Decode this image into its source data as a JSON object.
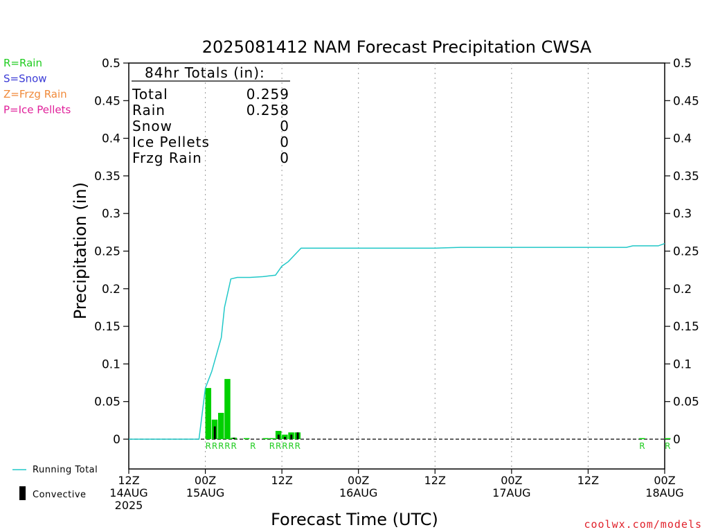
{
  "chart_data": {
    "type": "bar",
    "title": "2025081412 NAM Forecast Precipitation CWSA",
    "xlabel": "Forecast Time (UTC)",
    "ylabel": "Precipitation (in)",
    "ylim": [
      0,
      0.5
    ],
    "xlim_hours": [
      0,
      84
    ],
    "grid": "vertical dotted lines",
    "yticks": [
      "0",
      "0.05",
      "0.1",
      "0.15",
      "0.2",
      "0.25",
      "0.3",
      "0.35",
      "0.4",
      "0.45",
      "0.5"
    ],
    "xticks": [
      {
        "hour": 0,
        "lines": [
          "12Z",
          "14AUG",
          "2025"
        ]
      },
      {
        "hour": 12,
        "lines": [
          "00Z",
          "15AUG"
        ]
      },
      {
        "hour": 24,
        "lines": [
          "12Z"
        ]
      },
      {
        "hour": 36,
        "lines": [
          "00Z",
          "16AUG"
        ]
      },
      {
        "hour": 48,
        "lines": [
          "12Z"
        ]
      },
      {
        "hour": 60,
        "lines": [
          "00Z",
          "17AUG"
        ]
      },
      {
        "hour": 72,
        "lines": [
          "12Z"
        ]
      },
      {
        "hour": 84,
        "lines": [
          "00Z",
          "18AUG"
        ]
      }
    ],
    "precip_type_legend": [
      {
        "label": "R=Rain",
        "color": "#1fcc1f"
      },
      {
        "label": "S=Snow",
        "color": "#3b3bd6"
      },
      {
        "label": "Z=Frzg Rain",
        "color": "#f08a3a"
      },
      {
        "label": "P=Ice Pellets",
        "color": "#e0209a"
      }
    ],
    "totals_box": {
      "header": "84hr Totals (in):",
      "rows": [
        {
          "label": "Total",
          "value": "0.259"
        },
        {
          "label": "Rain",
          "value": "0.258"
        },
        {
          "label": "Snow",
          "value": "0"
        },
        {
          "label": "Ice Pellets",
          "value": "0"
        },
        {
          "label": "Frzg Rain",
          "value": "0"
        }
      ]
    },
    "series": [
      {
        "name": "Running Total",
        "color": "#20c8c8",
        "points": [
          [
            0,
            0
          ],
          [
            11,
            0
          ],
          [
            12,
            0.068
          ],
          [
            13,
            0.09
          ],
          [
            14,
            0.12
          ],
          [
            14.5,
            0.135
          ],
          [
            15,
            0.175
          ],
          [
            16,
            0.213
          ],
          [
            17,
            0.215
          ],
          [
            19,
            0.215
          ],
          [
            21,
            0.216
          ],
          [
            22,
            0.217
          ],
          [
            23,
            0.218
          ],
          [
            24,
            0.23
          ],
          [
            25,
            0.236
          ],
          [
            27,
            0.254
          ],
          [
            30,
            0.254
          ],
          [
            36,
            0.254
          ],
          [
            48,
            0.254
          ],
          [
            52,
            0.255
          ],
          [
            60,
            0.255
          ],
          [
            72,
            0.255
          ],
          [
            78,
            0.255
          ],
          [
            79,
            0.257
          ],
          [
            80,
            0.257
          ],
          [
            82,
            0.257
          ],
          [
            83,
            0.257
          ],
          [
            84,
            0.26
          ]
        ]
      }
    ],
    "rain_bars": [
      {
        "hour": 12,
        "value": 0.068,
        "convective": 0.0
      },
      {
        "hour": 13,
        "value": 0.026,
        "convective": 0.017
      },
      {
        "hour": 14,
        "value": 0.035,
        "convective": 0.0
      },
      {
        "hour": 15,
        "value": 0.08,
        "convective": 0.0
      },
      {
        "hour": 16,
        "value": 0.002,
        "convective": 0.002
      },
      {
        "hour": 18,
        "value": 0.0005,
        "convective": 0.0
      },
      {
        "hour": 21,
        "value": 0.001,
        "convective": 0.0
      },
      {
        "hour": 22,
        "value": 0.001,
        "convective": 0.0
      },
      {
        "hour": 23,
        "value": 0.011,
        "convective": 0.006
      },
      {
        "hour": 24,
        "value": 0.006,
        "convective": 0.003
      },
      {
        "hour": 25,
        "value": 0.009,
        "convective": 0.006
      },
      {
        "hour": 26,
        "value": 0.009,
        "convective": 0.009
      },
      {
        "hour": 80,
        "value": 0.001,
        "convective": 0.0
      },
      {
        "hour": 84,
        "value": 0.001,
        "convective": 0.0
      }
    ],
    "type_markers": [
      {
        "hour": 12,
        "label": "R"
      },
      {
        "hour": 13,
        "label": "R"
      },
      {
        "hour": 14,
        "label": "R"
      },
      {
        "hour": 15,
        "label": "R"
      },
      {
        "hour": 16,
        "label": "R"
      },
      {
        "hour": 19,
        "label": "R"
      },
      {
        "hour": 22,
        "label": "R"
      },
      {
        "hour": 23,
        "label": "R"
      },
      {
        "hour": 24,
        "label": "R"
      },
      {
        "hour": 25,
        "label": "R"
      },
      {
        "hour": 26,
        "label": "R"
      },
      {
        "hour": 80,
        "label": "R"
      },
      {
        "hour": 84,
        "label": "R"
      }
    ],
    "bottom_legend": [
      {
        "label": "Running Total",
        "color": "#20c8c8",
        "kind": "line"
      },
      {
        "label": "Convective",
        "color": "#000000",
        "kind": "bar"
      }
    ],
    "rain_color": "#00d000",
    "convective_color": "#000000"
  },
  "credit": "coolwx.com/models"
}
